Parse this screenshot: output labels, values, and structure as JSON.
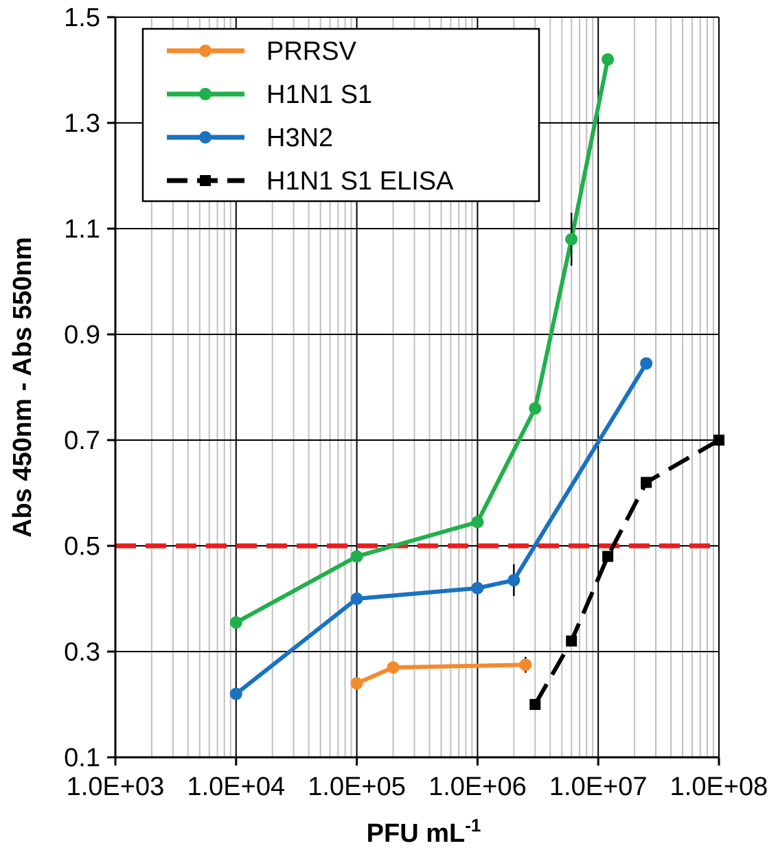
{
  "chart_data": {
    "type": "line",
    "xscale": "log",
    "xlim": [
      1000,
      100000000
    ],
    "ylim": [
      0.1,
      1.5
    ],
    "xticks": [
      1000,
      10000,
      100000,
      1000000,
      10000000,
      100000000
    ],
    "xtick_labels": [
      "1.0E+03",
      "1.0E+04",
      "1.0E+05",
      "1.0E+06",
      "1.0E+07",
      "1.0E+08"
    ],
    "yticks": [
      0.1,
      0.3,
      0.5,
      0.7,
      0.9,
      1.1,
      1.3,
      1.5
    ],
    "ytick_labels": [
      "0.1",
      "0.3",
      "0.5",
      "0.7",
      "0.9",
      "1.1",
      "1.3",
      "1.5"
    ],
    "grid": "major horizontal and minor vertical (log) gridlines",
    "xlabel": "PFU mL",
    "xlabel_superscript": "-1",
    "ylabel": "Abs 450nm - Abs 550nm",
    "legend_position": "top-left",
    "threshold": {
      "y": 0.5,
      "color": "#ee1c1c",
      "style": "dashed"
    },
    "series": [
      {
        "name": "PRRSV",
        "color": "#f58a2d",
        "style": "solid",
        "marker": "circle",
        "points": [
          {
            "x": 100000,
            "y": 0.24
          },
          {
            "x": 200000,
            "y": 0.27
          },
          {
            "x": 2500000,
            "y": 0.275,
            "err": 0.015
          }
        ]
      },
      {
        "name": "H1N1 S1",
        "color": "#21b04b",
        "style": "solid",
        "marker": "circle",
        "points": [
          {
            "x": 10000,
            "y": 0.355
          },
          {
            "x": 100000,
            "y": 0.48
          },
          {
            "x": 1000000,
            "y": 0.545
          },
          {
            "x": 3000000,
            "y": 0.76
          },
          {
            "x": 6000000,
            "y": 1.08,
            "err": 0.05
          },
          {
            "x": 12000000,
            "y": 1.42
          }
        ]
      },
      {
        "name": "H3N2",
        "color": "#1a72c0",
        "style": "solid",
        "marker": "circle",
        "points": [
          {
            "x": 10000,
            "y": 0.22
          },
          {
            "x": 100000,
            "y": 0.4
          },
          {
            "x": 1000000,
            "y": 0.42
          },
          {
            "x": 2000000,
            "y": 0.435,
            "err": 0.03
          },
          {
            "x": 25000000,
            "y": 0.845
          }
        ]
      },
      {
        "name": "H1N1 S1 ELISA",
        "color": "#000000",
        "style": "dashed",
        "marker": "square",
        "points": [
          {
            "x": 3000000,
            "y": 0.2
          },
          {
            "x": 6000000,
            "y": 0.32
          },
          {
            "x": 12000000,
            "y": 0.48
          },
          {
            "x": 25000000,
            "y": 0.62
          },
          {
            "x": 100000000,
            "y": 0.7
          }
        ]
      }
    ]
  }
}
